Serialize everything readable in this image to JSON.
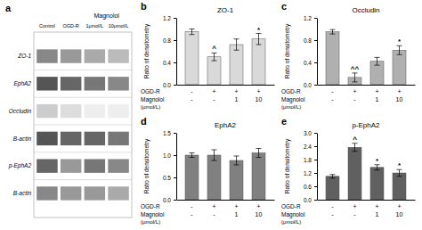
{
  "chart_data": [
    {
      "type": "blot",
      "panel_label": "a",
      "title": "Magnolol",
      "categories": [
        "Control",
        "OGD-R",
        "1μmol/L",
        "10μmol/L"
      ],
      "rows": [
        "ZO-1",
        "EphA2",
        "Occludin",
        "B-actin",
        "p-EphA2",
        "B-actin"
      ],
      "colors": [
        [
          "#888",
          "#999",
          "#aaa",
          "#bbb"
        ],
        [
          "#555",
          "#666",
          "#777",
          "#888"
        ],
        [
          "#ccc",
          "#ddd",
          "#eee",
          "#eee"
        ],
        [
          "#555",
          "#666",
          "#666",
          "#777"
        ],
        [
          "#666",
          "#999",
          "#777",
          "#888"
        ],
        [
          "#888",
          "#999",
          "#999",
          "#aaa"
        ]
      ]
    },
    {
      "type": "bar",
      "panel_label": "b",
      "title": "ZO-1",
      "color": "#d9d9d9",
      "values": [
        0.95,
        0.5,
        0.72,
        0.82
      ],
      "errors": [
        0.05,
        0.07,
        0.1,
        0.1
      ],
      "ylim": [
        0,
        1.2
      ],
      "yticks": [
        {
          "value": 0,
          "label": "0.0"
        },
        0.4,
        0.8,
        1.2
      ],
      "ylabel": "Ratio of densitometry",
      "annotations": [
        null,
        "^",
        null,
        "*"
      ],
      "condition_rows": [
        {
          "label": "OGD-R",
          "labels": [
            "-",
            "+",
            "+",
            "+"
          ]
        },
        {
          "label": "Magnolol",
          "labels": [
            "-",
            "-",
            "1",
            "10"
          ]
        }
      ],
      "condition_unit": "(μmol/L)"
    },
    {
      "type": "bar",
      "panel_label": "c",
      "title": "Occludin",
      "color": "#b0b0b0",
      "values": [
        0.95,
        0.13,
        0.42,
        0.62
      ],
      "errors": [
        0.04,
        0.08,
        0.07,
        0.08
      ],
      "ylim": [
        0,
        1.2
      ],
      "yticks": [
        {
          "value": 0,
          "label": "0.0"
        },
        0.4,
        0.8,
        1.2
      ],
      "ylabel": "Ratio of densitometry",
      "annotations": [
        null,
        "^^",
        null,
        "*"
      ],
      "condition_rows": [
        {
          "label": "OGD-R",
          "labels": [
            "-",
            "+",
            "+",
            "+"
          ]
        },
        {
          "label": "Magnolol",
          "labels": [
            "-",
            "-",
            "1",
            "10"
          ]
        }
      ],
      "condition_unit": "(μmol/L)"
    },
    {
      "type": "bar",
      "panel_label": "d",
      "title": "EphA2",
      "color": "#808080",
      "values": [
        1.0,
        1.0,
        0.88,
        1.05
      ],
      "errors": [
        0.05,
        0.12,
        0.1,
        0.1
      ],
      "ylim": [
        0,
        1.5
      ],
      "yticks": [
        {
          "value": 0,
          "label": "0.0"
        },
        0.5,
        {
          "value": 1,
          "label": "1.0"
        },
        1.5
      ],
      "ylabel": "Ratio of densitometry",
      "condition_rows": [
        {
          "label": "OGD-R",
          "labels": [
            "-",
            "+",
            "+",
            "+"
          ]
        },
        {
          "label": "Magnolol",
          "labels": [
            "-",
            "-",
            "1",
            "10"
          ]
        }
      ],
      "condition_unit": "(μmol/L)"
    },
    {
      "type": "bar",
      "panel_label": "e",
      "title": "p-EphA2",
      "color": "#606060",
      "values": [
        1.05,
        2.35,
        1.45,
        1.2
      ],
      "errors": [
        0.08,
        0.18,
        0.12,
        0.15
      ],
      "ylim": [
        0,
        3.0
      ],
      "yticks": [
        {
          "value": 0,
          "label": "0.0"
        },
        0.6,
        1.2,
        1.8,
        2.4,
        {
          "value": 3,
          "label": "3.0"
        }
      ],
      "ylabel": "Ratio of densitometry",
      "annotations": [
        null,
        "^",
        "*",
        "*"
      ],
      "condition_rows": [
        {
          "label": "OGD-R",
          "labels": [
            "-",
            "+",
            "+",
            "+"
          ]
        },
        {
          "label": "Magnolol",
          "labels": [
            "-",
            "-",
            "1",
            "10"
          ]
        }
      ],
      "condition_unit": "(μmol/L)"
    }
  ]
}
